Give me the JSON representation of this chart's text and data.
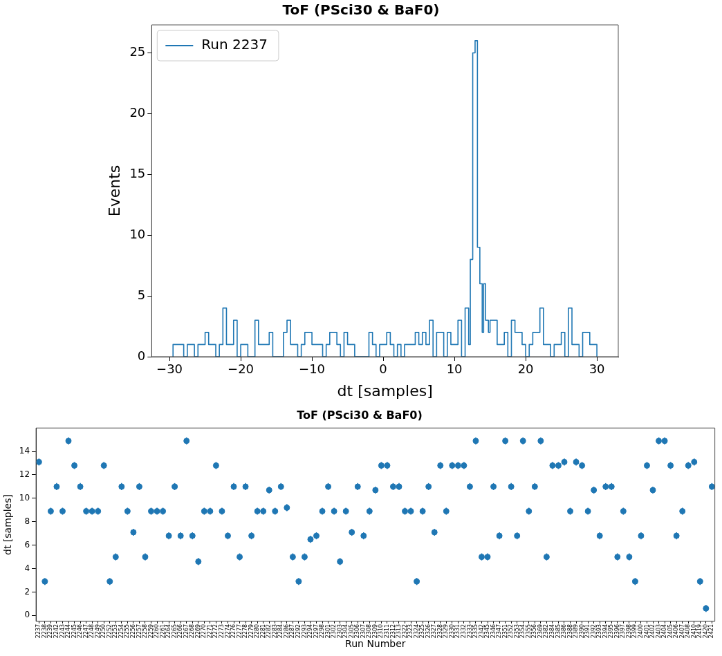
{
  "chart_data": [
    {
      "type": "histogram",
      "title": "ToF (PSci30 & BaF0)",
      "xlabel": "dt [samples]",
      "ylabel": "Events",
      "bins": [
        -29.5,
        -29,
        -28.5,
        -28,
        -27.5,
        -27,
        -26.5,
        -26,
        -25.5,
        -25,
        -24.5,
        -24,
        -23.5,
        -23,
        -22.5,
        -22,
        -21.5,
        -21,
        -20.5,
        -20,
        -19.5,
        -19,
        -18.5,
        -18,
        -17.5,
        -17,
        -16.5,
        -16,
        -15.5,
        -15,
        -14.5,
        -14,
        -13.5,
        -13,
        -12.5,
        -12,
        -11.5,
        -11,
        -10.5,
        -10,
        -9.5,
        -9,
        -8.5,
        -8,
        -7.5,
        -7,
        -6.5,
        -6,
        -5.5,
        -5,
        -4.5,
        -4,
        -3.5,
        -3,
        -2.5,
        -2,
        -1.5,
        -1,
        -0.5,
        0,
        0.5,
        1,
        1.5,
        2,
        2.5,
        3,
        3.5,
        4,
        4.5,
        5,
        5.5,
        6,
        6.5,
        7,
        7.5,
        8,
        8.5,
        9,
        9.5,
        10,
        10.5,
        11,
        11.5,
        12,
        12.23,
        12.57,
        12.9,
        13.23,
        13.57,
        13.9,
        14.1,
        14.37,
        14.77,
        15,
        15.5,
        16,
        16.5,
        17,
        17.5,
        18,
        18.5,
        19,
        19.5,
        20,
        20.5,
        21,
        21.5,
        22,
        22.5,
        23,
        23.5,
        24,
        24.5,
        25,
        25.5,
        26,
        26.5,
        27,
        27.5,
        28,
        28.5,
        29,
        29.5,
        30
      ],
      "series": [
        {
          "name": "Run 2237",
          "color": "#1f77b4",
          "values": [
            1,
            1,
            1,
            0,
            1,
            1,
            0,
            1,
            1,
            2,
            1,
            1,
            0,
            1,
            4,
            1,
            1,
            3,
            0,
            1,
            1,
            0,
            0,
            3,
            1,
            1,
            1,
            2,
            0,
            0,
            0,
            2,
            3,
            1,
            1,
            0,
            1,
            2,
            2,
            1,
            1,
            1,
            0,
            1,
            2,
            2,
            1,
            0,
            2,
            1,
            1,
            0,
            0,
            0,
            0,
            2,
            1,
            0,
            1,
            1,
            2,
            1,
            0,
            1,
            0,
            1,
            1,
            1,
            2,
            1,
            2,
            1,
            3,
            0,
            2,
            2,
            0,
            2,
            1,
            1,
            3,
            0,
            4,
            1,
            8,
            25,
            26,
            9,
            6,
            2,
            6,
            3,
            2,
            3,
            3,
            1,
            1,
            2,
            0,
            3,
            2,
            2,
            1,
            0,
            1,
            2,
            2,
            4,
            1,
            1,
            0,
            1,
            1,
            2,
            0,
            4,
            1,
            1,
            0,
            2,
            2,
            1,
            1
          ]
        }
      ],
      "xlim": [
        -32.5,
        33
      ],
      "xticks": [
        -30,
        -20,
        -10,
        0,
        10,
        20,
        30
      ],
      "ylim": [
        0,
        27.3
      ],
      "yticks": [
        0,
        5,
        10,
        15,
        20,
        25
      ],
      "grid": false,
      "legend": "top left"
    },
    {
      "type": "scatter",
      "title": "ToF (PSci30 & BaF0)",
      "xlabel": "Run Number",
      "ylabel": "dt [samples]",
      "categories": [
        "2237",
        "2238",
        "2239",
        "2242",
        "2243",
        "2244",
        "2245",
        "2246",
        "2247",
        "2248",
        "2249",
        "2250",
        "2252",
        "2253",
        "2254",
        "2255",
        "2256",
        "2257",
        "2258",
        "2259",
        "2260",
        "2261",
        "2264",
        "2265",
        "2266",
        "2267",
        "2268",
        "2269",
        "2270",
        "2271",
        "2272",
        "2273",
        "2274",
        "2276",
        "2277",
        "2278",
        "2279",
        "2280",
        "2281",
        "2282",
        "2283",
        "2284",
        "2286",
        "2287",
        "2292",
        "2293",
        "2294",
        "2297",
        "2298",
        "2301",
        "2302",
        "2303",
        "2304",
        "2305",
        "2306",
        "2307",
        "2308",
        "2309",
        "2310",
        "2311",
        "2312",
        "2313",
        "2322",
        "2323",
        "2324",
        "2325",
        "2326",
        "2327",
        "2328",
        "2329",
        "2330",
        "2331",
        "2332",
        "2333",
        "2335",
        "2342",
        "2345",
        "2346",
        "2347",
        "2351",
        "2352",
        "2353",
        "2354",
        "2355",
        "2356",
        "2369",
        "2382",
        "2384",
        "2385",
        "2386",
        "2388",
        "2389",
        "2390",
        "2391",
        "2392",
        "2393",
        "2394",
        "2395",
        "2396",
        "2397",
        "2398",
        "2399",
        "2400",
        "2401",
        "2402",
        "2403",
        "2404",
        "2405",
        "2406",
        "2407",
        "2408",
        "2410",
        "2419",
        "2420",
        "2421"
      ],
      "values": [
        13.1,
        2.9,
        8.9,
        11,
        8.9,
        14.9,
        12.8,
        11,
        8.9,
        8.9,
        8.9,
        12.8,
        2.9,
        5,
        11,
        8.9,
        7.1,
        11,
        5,
        8.9,
        8.9,
        8.9,
        6.8,
        11,
        6.8,
        14.9,
        6.8,
        4.6,
        8.9,
        8.9,
        12.8,
        8.9,
        6.8,
        11,
        5,
        11,
        6.8,
        8.9,
        8.9,
        10.7,
        8.9,
        11,
        9.2,
        5,
        2.9,
        5,
        6.5,
        6.8,
        8.9,
        11,
        8.9,
        4.6,
        8.9,
        7.1,
        11,
        6.8,
        8.9,
        10.7,
        12.8,
        12.8,
        11,
        11,
        8.9,
        8.9,
        2.9,
        8.9,
        11,
        7.1,
        12.8,
        8.9,
        12.8,
        12.8,
        12.8,
        11,
        14.9,
        5,
        5,
        11,
        6.8,
        14.9,
        11,
        6.8,
        14.9,
        8.9,
        11,
        14.9,
        5,
        12.8,
        12.8,
        13.1,
        8.9,
        13.1,
        12.8,
        8.9,
        10.7,
        6.8,
        11,
        11,
        5,
        8.9,
        5,
        2.9,
        6.8,
        12.8,
        10.7,
        14.9,
        14.9,
        12.8,
        6.8,
        8.9,
        12.8,
        13.1,
        2.9,
        0.6,
        11
      ],
      "errors": [
        0.3,
        0.3,
        0.3,
        0.3,
        0.3,
        0.3,
        0.3,
        0.3,
        0.3,
        0.3,
        0.3,
        0.3,
        0.3,
        0.3,
        0.3,
        0.3,
        0.3,
        0.3,
        0.3,
        0.3,
        0.3,
        0.3,
        0.3,
        0.3,
        0.3,
        0.3,
        0.3,
        0.3,
        0.3,
        0.3,
        0.3,
        0.3,
        0.3,
        0.3,
        0.3,
        0.3,
        0.3,
        0.3,
        0.3,
        0.3,
        0.3,
        0.3,
        0.3,
        0.3,
        0.3,
        0.3,
        0.3,
        0.3,
        0.3,
        0.3,
        0.3,
        0.3,
        0.3,
        0.3,
        0.3,
        0.3,
        0.3,
        0.3,
        0.3,
        0.3,
        0.3,
        0.3,
        0.3,
        0.3,
        0.3,
        0.3,
        0.3,
        0.3,
        0.3,
        0.3,
        0.3,
        0.3,
        0.3,
        0.3,
        0.3,
        0.3,
        0.3,
        0.3,
        0.3,
        0.3,
        0.3,
        0.3,
        0.3,
        0.3,
        0.3,
        0.3,
        0.3,
        0.3,
        0.3,
        0.3,
        0.3,
        0.3,
        0.3,
        0.3,
        0.3,
        0.3,
        0.3,
        0.3,
        0.3,
        0.3,
        0.3,
        0.3,
        0.3,
        0.3,
        0.3,
        0.3,
        0.3,
        0.3,
        0.3,
        0.3,
        0.3,
        0.3,
        0.3,
        0.3,
        0.3
      ],
      "color": "#1f77b4",
      "marker": "circle",
      "ylim": [
        -0.5,
        16
      ],
      "yticks": [
        0,
        2,
        4,
        6,
        8,
        10,
        12,
        14
      ],
      "grid": false
    }
  ]
}
